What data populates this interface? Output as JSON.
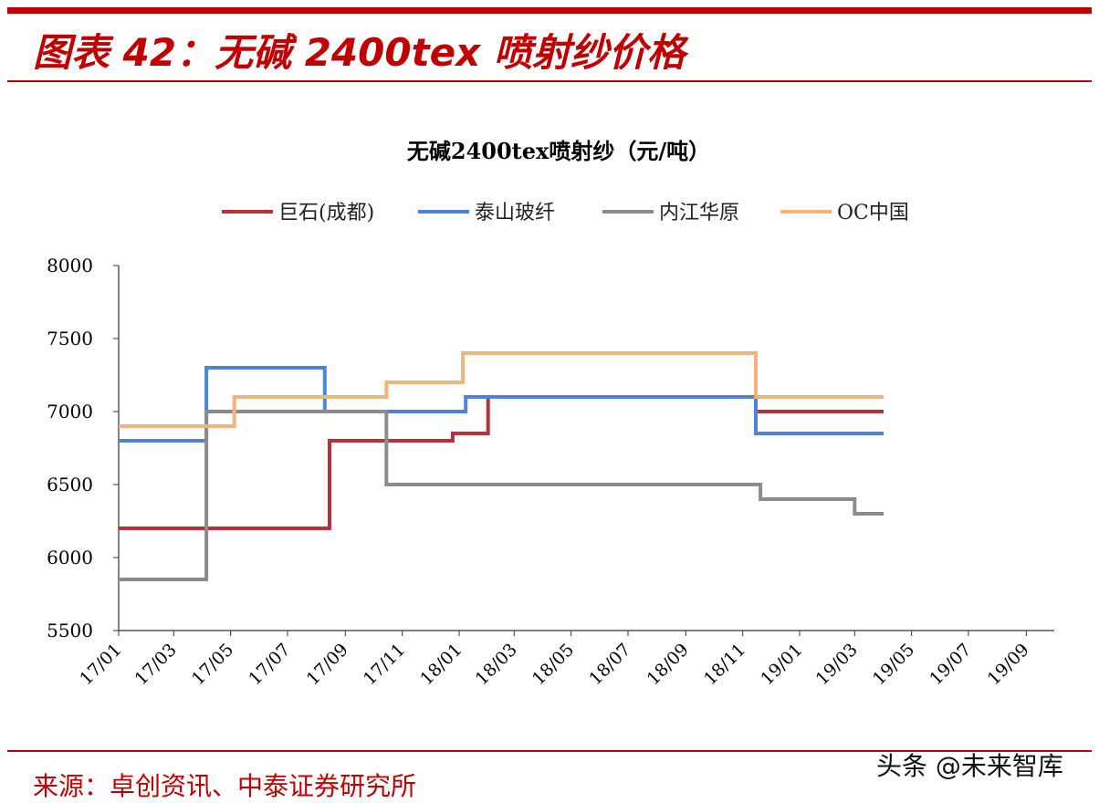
{
  "figure": {
    "title": "图表 42：无碱 2400tex 喷射纱价格",
    "source": "来源：卓创资讯、中泰证券研究所",
    "watermark": "头条 @未来智库"
  },
  "chart_data": {
    "type": "line",
    "title": "无碱2400tex喷射纱（元/吨）",
    "xlabel": "",
    "ylabel": "",
    "ylim": [
      5500,
      8000
    ],
    "yticks": [
      5500,
      6000,
      6500,
      7000,
      7500,
      8000
    ],
    "xlim": [
      "2017-01-01",
      "2019-10-01"
    ],
    "xticks": [
      "17/01",
      "17/03",
      "17/05",
      "17/07",
      "17/09",
      "17/11",
      "18/01",
      "18/03",
      "18/05",
      "18/07",
      "18/09",
      "18/11",
      "19/01",
      "19/03",
      "19/05",
      "19/07",
      "19/09"
    ],
    "grid": false,
    "legend_position": "top",
    "line_style": "step",
    "series": [
      {
        "name": "巨石(成都)",
        "color": "#b5343a",
        "points": [
          [
            "2017-01-01",
            6200
          ],
          [
            "2017-08-15",
            6800
          ],
          [
            "2017-12-25",
            6850
          ],
          [
            "2018-02-01",
            7100
          ],
          [
            "2018-11-15",
            7000
          ],
          [
            "2019-04-01",
            7000
          ]
        ]
      },
      {
        "name": "泰山玻纤",
        "color": "#4a86d4",
        "points": [
          [
            "2017-01-01",
            6800
          ],
          [
            "2017-04-05",
            7300
          ],
          [
            "2017-08-10",
            7000
          ],
          [
            "2018-01-08",
            7100
          ],
          [
            "2018-11-15",
            6850
          ],
          [
            "2019-04-01",
            6850
          ]
        ]
      },
      {
        "name": "内江华原",
        "color": "#8c8c8c",
        "points": [
          [
            "2017-01-01",
            5850
          ],
          [
            "2017-04-05",
            7000
          ],
          [
            "2017-10-15",
            6500
          ],
          [
            "2018-11-20",
            6400
          ],
          [
            "2019-03-01",
            6300
          ],
          [
            "2019-04-01",
            6300
          ]
        ]
      },
      {
        "name": "OC中国",
        "color": "#f5b27a",
        "points": [
          [
            "2017-01-01",
            6900
          ],
          [
            "2017-05-05",
            7100
          ],
          [
            "2017-10-15",
            7200
          ],
          [
            "2018-01-05",
            7400
          ],
          [
            "2018-11-15",
            7100
          ],
          [
            "2019-04-01",
            7100
          ]
        ]
      }
    ]
  }
}
